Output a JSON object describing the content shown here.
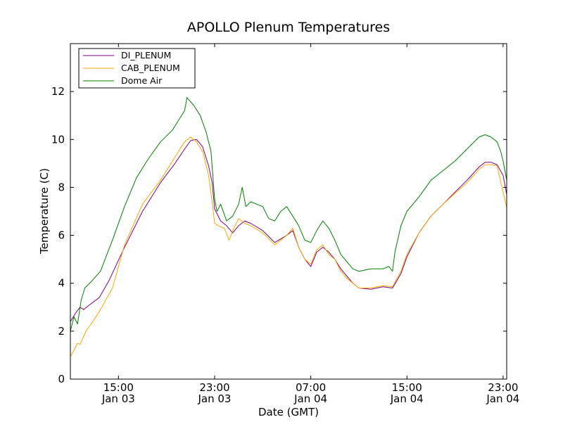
{
  "chart_data": {
    "type": "line",
    "title": "APOLLO Plenum Temperatures",
    "xlabel": "Date (GMT)",
    "ylabel": "Temperature (C)",
    "x_unit": "hours since 2000-01-03 11:00 GMT",
    "xlim": [
      0,
      36.3
    ],
    "ylim": [
      0,
      14
    ],
    "y_ticks": [
      0,
      2,
      4,
      6,
      8,
      10,
      12
    ],
    "x_ticks": [
      {
        "hour": 4,
        "line1": "15:00",
        "line2": "Jan 03"
      },
      {
        "hour": 12,
        "line1": "23:00",
        "line2": "Jan 03"
      },
      {
        "hour": 20,
        "line1": "07:00",
        "line2": "Jan 04"
      },
      {
        "hour": 28,
        "line1": "15:00",
        "line2": "Jan 04"
      },
      {
        "hour": 36,
        "line1": "23:00",
        "line2": "Jan 04"
      }
    ],
    "legend_position": "top-left",
    "series": [
      {
        "name": "DI_PLENUM",
        "color": "#800080",
        "points": [
          [
            0,
            2.4
          ],
          [
            0.5,
            2.8
          ],
          [
            0.8,
            3.0
          ],
          [
            1.1,
            2.9
          ],
          [
            1.6,
            3.1
          ],
          [
            2.4,
            3.4
          ],
          [
            3.2,
            4.1
          ],
          [
            4.5,
            5.5
          ],
          [
            6,
            7.0
          ],
          [
            7.5,
            8.2
          ],
          [
            8.7,
            9.0
          ],
          [
            9.5,
            9.6
          ],
          [
            10,
            9.95
          ],
          [
            10.5,
            10.0
          ],
          [
            11,
            9.7
          ],
          [
            11.5,
            8.9
          ],
          [
            11.8,
            8.2
          ],
          [
            12,
            7.1
          ],
          [
            12.2,
            6.9
          ],
          [
            12.5,
            6.6
          ],
          [
            13,
            6.4
          ],
          [
            13.5,
            6.1
          ],
          [
            14,
            6.4
          ],
          [
            14.5,
            6.6
          ],
          [
            15,
            6.5
          ],
          [
            16,
            6.2
          ],
          [
            17,
            5.7
          ],
          [
            18,
            6.0
          ],
          [
            18.5,
            6.2
          ],
          [
            19,
            5.5
          ],
          [
            19.5,
            5.0
          ],
          [
            20,
            4.7
          ],
          [
            20.5,
            5.3
          ],
          [
            21,
            5.5
          ],
          [
            21.5,
            5.3
          ],
          [
            22,
            5.0
          ],
          [
            22.5,
            4.6
          ],
          [
            23,
            4.3
          ],
          [
            23.5,
            4.0
          ],
          [
            24,
            3.8
          ],
          [
            25,
            3.75
          ],
          [
            26,
            3.85
          ],
          [
            26.8,
            3.8
          ],
          [
            27.5,
            4.4
          ],
          [
            28,
            5.1
          ],
          [
            29,
            6.1
          ],
          [
            30,
            6.8
          ],
          [
            31,
            7.3
          ],
          [
            32,
            7.8
          ],
          [
            33,
            8.3
          ],
          [
            34,
            8.85
          ],
          [
            34.5,
            9.05
          ],
          [
            35,
            9.05
          ],
          [
            35.5,
            8.95
          ],
          [
            36,
            8.5
          ],
          [
            36.3,
            7.7
          ]
        ]
      },
      {
        "name": "CAB_PLENUM",
        "color": "#FFA500",
        "points": [
          [
            0,
            0.95
          ],
          [
            0.3,
            1.2
          ],
          [
            0.6,
            1.5
          ],
          [
            0.8,
            1.45
          ],
          [
            1.3,
            2.0
          ],
          [
            2,
            2.5
          ],
          [
            2.5,
            2.9
          ],
          [
            3.5,
            3.8
          ],
          [
            4.5,
            5.6
          ],
          [
            6,
            7.3
          ],
          [
            7.5,
            8.3
          ],
          [
            8.5,
            9.1
          ],
          [
            9.5,
            9.9
          ],
          [
            10,
            10.1
          ],
          [
            10.5,
            9.9
          ],
          [
            11,
            9.5
          ],
          [
            11.5,
            8.5
          ],
          [
            11.8,
            7.4
          ],
          [
            12,
            6.5
          ],
          [
            12.3,
            6.4
          ],
          [
            12.8,
            6.3
          ],
          [
            13.2,
            5.8
          ],
          [
            13.6,
            6.3
          ],
          [
            14,
            6.7
          ],
          [
            14.5,
            6.5
          ],
          [
            15,
            6.4
          ],
          [
            16,
            6.1
          ],
          [
            17,
            5.6
          ],
          [
            18,
            6.0
          ],
          [
            18.5,
            6.3
          ],
          [
            19,
            5.5
          ],
          [
            19.5,
            5.0
          ],
          [
            20,
            4.8
          ],
          [
            20.5,
            5.4
          ],
          [
            21,
            5.6
          ],
          [
            21.5,
            5.2
          ],
          [
            22,
            5.0
          ],
          [
            22.5,
            4.5
          ],
          [
            23,
            4.2
          ],
          [
            23.5,
            4.0
          ],
          [
            24,
            3.8
          ],
          [
            25,
            3.8
          ],
          [
            26,
            3.9
          ],
          [
            26.8,
            3.85
          ],
          [
            27.5,
            4.5
          ],
          [
            28,
            5.2
          ],
          [
            29,
            6.1
          ],
          [
            30,
            6.8
          ],
          [
            31,
            7.3
          ],
          [
            32,
            7.75
          ],
          [
            33,
            8.2
          ],
          [
            34,
            8.75
          ],
          [
            34.5,
            8.95
          ],
          [
            35,
            8.95
          ],
          [
            35.5,
            8.9
          ],
          [
            36,
            7.8
          ],
          [
            36.3,
            7.15
          ]
        ]
      },
      {
        "name": "Dome Air",
        "color": "#008000",
        "points": [
          [
            0,
            2.0
          ],
          [
            0.3,
            2.6
          ],
          [
            0.6,
            2.3
          ],
          [
            0.9,
            3.3
          ],
          [
            1.2,
            3.8
          ],
          [
            1.8,
            4.1
          ],
          [
            2.5,
            4.5
          ],
          [
            3.5,
            5.8
          ],
          [
            4.5,
            7.2
          ],
          [
            5.5,
            8.4
          ],
          [
            6.5,
            9.2
          ],
          [
            7.5,
            9.9
          ],
          [
            8.5,
            10.4
          ],
          [
            9,
            10.8
          ],
          [
            9.5,
            11.2
          ],
          [
            9.7,
            11.75
          ],
          [
            10.3,
            11.4
          ],
          [
            10.8,
            11.0
          ],
          [
            11.3,
            10.3
          ],
          [
            11.7,
            9.5
          ],
          [
            12,
            7.5
          ],
          [
            12.2,
            7.0
          ],
          [
            12.5,
            7.3
          ],
          [
            13,
            6.6
          ],
          [
            13.5,
            6.8
          ],
          [
            14,
            7.3
          ],
          [
            14.3,
            8.0
          ],
          [
            14.6,
            7.2
          ],
          [
            15,
            7.4
          ],
          [
            16,
            7.2
          ],
          [
            16.5,
            6.7
          ],
          [
            17,
            6.6
          ],
          [
            17.5,
            7.0
          ],
          [
            18,
            7.2
          ],
          [
            18.5,
            6.8
          ],
          [
            19,
            6.4
          ],
          [
            19.5,
            5.8
          ],
          [
            20,
            5.7
          ],
          [
            20.5,
            6.2
          ],
          [
            21,
            6.6
          ],
          [
            21.5,
            6.3
          ],
          [
            22,
            5.8
          ],
          [
            22.5,
            5.2
          ],
          [
            23,
            4.9
          ],
          [
            23.5,
            4.6
          ],
          [
            24,
            4.5
          ],
          [
            25,
            4.6
          ],
          [
            26,
            4.6
          ],
          [
            26.5,
            4.7
          ],
          [
            26.8,
            4.5
          ],
          [
            27,
            5.3
          ],
          [
            27.5,
            6.4
          ],
          [
            28,
            7.0
          ],
          [
            29,
            7.6
          ],
          [
            30,
            8.3
          ],
          [
            31,
            8.7
          ],
          [
            32,
            9.1
          ],
          [
            33,
            9.6
          ],
          [
            34,
            10.1
          ],
          [
            34.5,
            10.2
          ],
          [
            35,
            10.1
          ],
          [
            35.5,
            9.9
          ],
          [
            35.8,
            9.5
          ],
          [
            36,
            9.1
          ],
          [
            36.3,
            8.3
          ]
        ]
      }
    ]
  }
}
